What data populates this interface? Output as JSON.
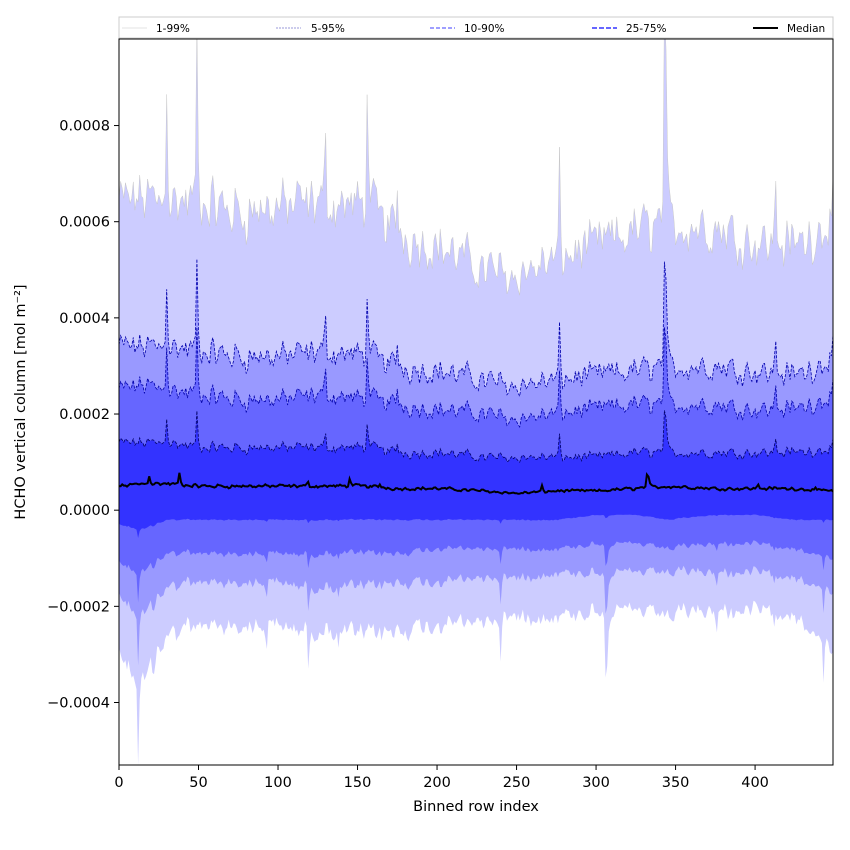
{
  "chart_data": {
    "type": "area",
    "xlabel": "Binned row index",
    "ylabel": "HCHO vertical column [mol m⁻²]",
    "xlim": [
      0,
      449
    ],
    "ylim": [
      -0.00053,
      0.00098
    ],
    "x_ticks": [
      0,
      50,
      100,
      150,
      200,
      250,
      300,
      350,
      400
    ],
    "x_tick_labels": [
      "0",
      "50",
      "100",
      "150",
      "200",
      "250",
      "300",
      "350",
      "400"
    ],
    "y_ticks": [
      -0.0004,
      -0.0002,
      0.0,
      0.0002,
      0.0004,
      0.0006,
      0.0008
    ],
    "y_tick_labels": [
      "−0.0004",
      "−0.0002",
      "0.0000",
      "0.0002",
      "0.0004",
      "0.0006",
      "0.0008"
    ],
    "grid": false,
    "legend_position": "top",
    "x_key_points": [
      0,
      15,
      30,
      50,
      75,
      100,
      130,
      155,
      175,
      200,
      230,
      250,
      275,
      300,
      325,
      345,
      375,
      400,
      425,
      449
    ],
    "series": [
      {
        "name": "1-99%",
        "color": "#ccccff",
        "line_color": "#c8c8c8",
        "lower": [
          -0.0003,
          -0.00036,
          -0.00026,
          -0.00024,
          -0.00024,
          -0.00024,
          -0.00025,
          -0.00026,
          -0.00025,
          -0.00024,
          -0.00023,
          -0.00022,
          -0.00022,
          -0.00021,
          -0.00021,
          -0.00022,
          -0.00021,
          -0.00021,
          -0.00022,
          -0.00029
        ],
        "upper": [
          0.00064,
          0.00065,
          0.00064,
          0.00064,
          0.00062,
          0.00063,
          0.00064,
          0.00063,
          0.00058,
          0.00055,
          0.0005,
          0.00049,
          0.00052,
          0.00055,
          0.00058,
          0.0006,
          0.00059,
          0.00056,
          0.00055,
          0.00061
        ]
      },
      {
        "name": "5-95%",
        "color": "#9999ff",
        "line_color": "#0000aa",
        "lower": [
          -0.00018,
          -0.00022,
          -0.00016,
          -0.00015,
          -0.00015,
          -0.00015,
          -0.00016,
          -0.00016,
          -0.00015,
          -0.00015,
          -0.00014,
          -0.00014,
          -0.00013,
          -0.00013,
          -0.00013,
          -0.00013,
          -0.00013,
          -0.00013,
          -0.00014,
          -0.00017
        ],
        "upper": [
          0.00034,
          0.00034,
          0.00034,
          0.00033,
          0.00032,
          0.00032,
          0.00033,
          0.00032,
          0.0003,
          0.00029,
          0.00027,
          0.00026,
          0.00027,
          0.00028,
          0.00029,
          0.0003,
          0.0003,
          0.00029,
          0.00028,
          0.00032
        ]
      },
      {
        "name": "10-90%",
        "color": "#6666ff",
        "line_color": "#0000aa",
        "lower": [
          -0.00011,
          -0.00013,
          -9e-05,
          -9e-05,
          -9e-05,
          -9e-05,
          -9e-05,
          -9e-05,
          -9e-05,
          -8e-05,
          -8e-05,
          -8e-05,
          -8e-05,
          -7e-05,
          -7e-05,
          -8e-05,
          -7e-05,
          -7e-05,
          -8e-05,
          -0.0001
        ],
        "upper": [
          0.00025,
          0.00026,
          0.00025,
          0.00024,
          0.00023,
          0.00023,
          0.00024,
          0.00023,
          0.00022,
          0.00021,
          0.0002,
          0.00019,
          0.0002,
          0.00021,
          0.00022,
          0.00022,
          0.00022,
          0.00021,
          0.00021,
          0.00024
        ]
      },
      {
        "name": "25-75%",
        "color": "#3333ff",
        "line_color": "#000066",
        "lower": [
          -3e-05,
          -4e-05,
          -2e-05,
          -2e-05,
          -2e-05,
          -2e-05,
          -2e-05,
          -2e-05,
          -2e-05,
          -2e-05,
          -2e-05,
          -2e-05,
          -2e-05,
          -1e-05,
          -1e-05,
          -2e-05,
          -1e-05,
          -1e-05,
          -2e-05,
          -2e-05
        ],
        "upper": [
          0.00014,
          0.00014,
          0.00014,
          0.00013,
          0.00013,
          0.00013,
          0.00013,
          0.00013,
          0.00012,
          0.00012,
          0.00011,
          0.00011,
          0.00011,
          0.00011,
          0.00012,
          0.00012,
          0.00012,
          0.00012,
          0.00012,
          0.00013
        ]
      },
      {
        "name": "Median",
        "color": "#000000",
        "values": [
          5e-05,
          5.5e-05,
          5.5e-05,
          5e-05,
          5e-05,
          5e-05,
          5e-05,
          5e-05,
          4.5e-05,
          4.5e-05,
          4e-05,
          3.5e-05,
          4e-05,
          4e-05,
          4.5e-05,
          5e-05,
          4.5e-05,
          4.5e-05,
          4.5e-05,
          4e-05
        ]
      }
    ]
  }
}
